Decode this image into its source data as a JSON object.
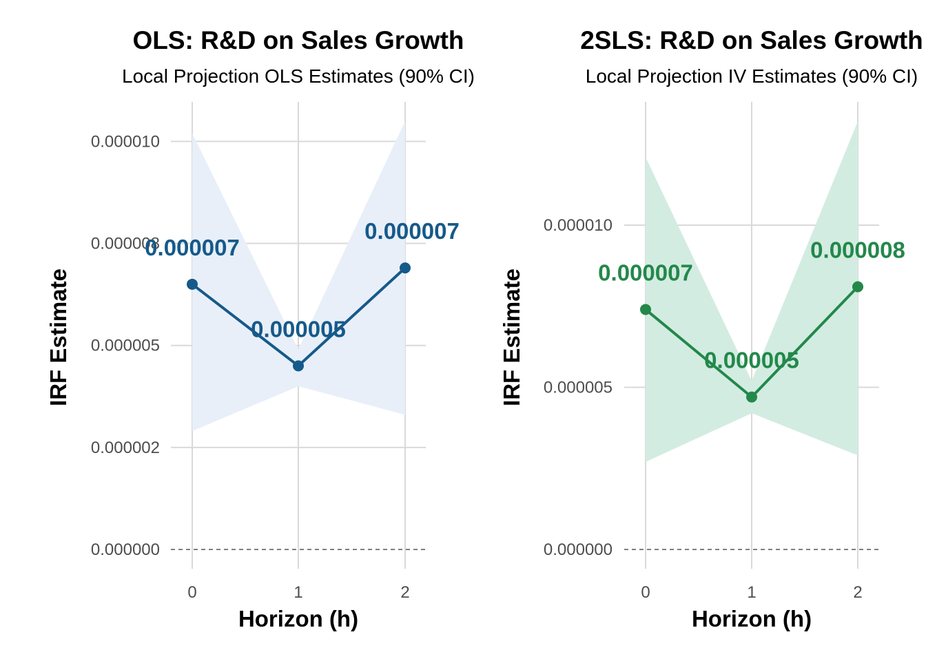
{
  "chart_data": [
    {
      "type": "line",
      "title": "OLS: R&D on Sales Growth",
      "subtitle": "Local Projection OLS Estimates (90% CI)",
      "xlabel": "Horizon (h)",
      "ylabel": "IRF Estimate",
      "x": [
        0,
        1,
        2
      ],
      "x_tick_labels": [
        "0",
        "1",
        "2"
      ],
      "y_ticks": [
        0.0,
        2.5e-06,
        5e-06,
        7.5e-06,
        1e-05
      ],
      "y_tick_labels": [
        "0.000000",
        "0.000002",
        "0.000005",
        "0.000008",
        "0.000010"
      ],
      "ylim": [
        0,
        1.08e-05
      ],
      "series": [
        {
          "values": [
            6.5e-06,
            4.5e-06,
            6.9e-06
          ],
          "data_labels": [
            "0.000007",
            "0.000005",
            "0.000007"
          ],
          "ci_lower": [
            2.9e-06,
            4e-06,
            3.3e-06
          ],
          "ci_upper": [
            1.02e-05,
            4.9e-06,
            1.05e-05
          ]
        }
      ],
      "reference_line": 0,
      "colors": {
        "line": "#155a8a",
        "ribbon": "#e9eff8",
        "label": "#155a8a"
      },
      "grid": true
    },
    {
      "type": "line",
      "title": "2SLS: R&D on Sales Growth",
      "subtitle": "Local Projection IV Estimates (90% CI)",
      "xlabel": "Horizon (h)",
      "ylabel": "IRF Estimate",
      "x": [
        0,
        1,
        2
      ],
      "x_tick_labels": [
        "0",
        "1",
        "2"
      ],
      "y_ticks": [
        0.0,
        5e-06,
        1e-05
      ],
      "y_tick_labels": [
        "0.000000",
        "0.000005",
        "0.000010"
      ],
      "ylim": [
        0,
        1.38e-05
      ],
      "series": [
        {
          "values": [
            7.4e-06,
            4.7e-06,
            8.1e-06
          ],
          "data_labels": [
            "0.000007",
            "0.000005",
            "0.000008"
          ],
          "ci_lower": [
            2.7e-06,
            4.2e-06,
            2.9e-06
          ],
          "ci_upper": [
            1.21e-05,
            5.2e-06,
            1.32e-05
          ]
        }
      ],
      "reference_line": 0,
      "colors": {
        "line": "#23884a",
        "ribbon": "#d3ece2",
        "label": "#23884a"
      },
      "grid": true
    }
  ]
}
